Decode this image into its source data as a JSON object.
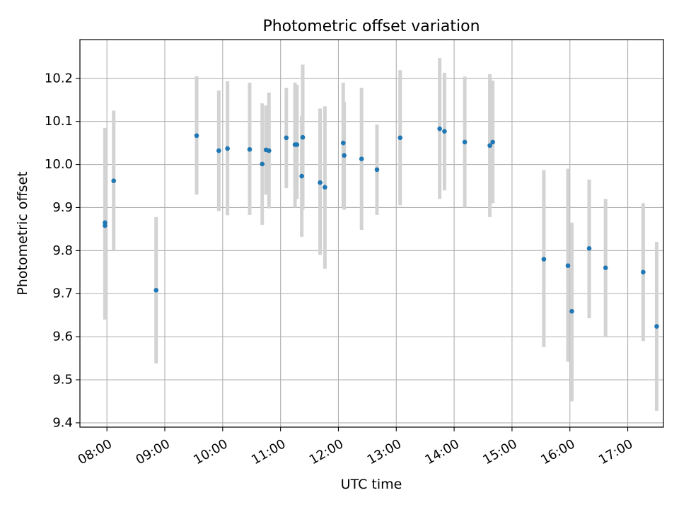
{
  "chart_data": {
    "type": "scatter",
    "title": "Photometric offset variation",
    "xlabel": "UTC time",
    "ylabel": "Photometric offset",
    "xlim": [
      "07:32",
      "17:37"
    ],
    "ylim": [
      9.39,
      10.29
    ],
    "x_ticks": [
      "08:00",
      "09:00",
      "10:00",
      "11:00",
      "12:00",
      "13:00",
      "14:00",
      "15:00",
      "16:00",
      "17:00"
    ],
    "y_ticks": [
      9.4,
      9.5,
      9.6,
      9.7,
      9.8,
      9.9,
      10.0,
      10.1,
      10.2
    ],
    "grid": true,
    "marker_color": "#1f77b4",
    "errorbar_color": "#d3d3d3",
    "points": [
      {
        "x": "07:58",
        "y": 9.865,
        "yerr_low": 9.64,
        "yerr_high": 10.085
      },
      {
        "x": "07:58",
        "y": 9.858,
        "yerr_low": 9.64,
        "yerr_high": 10.085
      },
      {
        "x": "08:07",
        "y": 9.962,
        "yerr_low": 9.8,
        "yerr_high": 10.125
      },
      {
        "x": "08:51",
        "y": 9.708,
        "yerr_low": 9.538,
        "yerr_high": 9.878
      },
      {
        "x": "09:33",
        "y": 10.067,
        "yerr_low": 9.93,
        "yerr_high": 10.205
      },
      {
        "x": "09:56",
        "y": 10.032,
        "yerr_low": 9.892,
        "yerr_high": 10.172
      },
      {
        "x": "10:05",
        "y": 10.037,
        "yerr_low": 9.882,
        "yerr_high": 10.193
      },
      {
        "x": "10:28",
        "y": 10.035,
        "yerr_low": 9.883,
        "yerr_high": 10.19
      },
      {
        "x": "10:41",
        "y": 10.001,
        "yerr_low": 9.86,
        "yerr_high": 10.142
      },
      {
        "x": "10:45",
        "y": 10.034,
        "yerr_low": 9.93,
        "yerr_high": 10.137
      },
      {
        "x": "10:48",
        "y": 10.032,
        "yerr_low": 9.898,
        "yerr_high": 10.167
      },
      {
        "x": "11:06",
        "y": 10.062,
        "yerr_low": 9.945,
        "yerr_high": 10.178
      },
      {
        "x": "11:15",
        "y": 10.046,
        "yerr_low": 9.9,
        "yerr_high": 10.19
      },
      {
        "x": "11:17",
        "y": 10.046,
        "yerr_low": 9.92,
        "yerr_high": 10.185
      },
      {
        "x": "11:22",
        "y": 9.973,
        "yerr_low": 9.832,
        "yerr_high": 10.113
      },
      {
        "x": "11:23",
        "y": 10.063,
        "yerr_low": 9.895,
        "yerr_high": 10.232
      },
      {
        "x": "11:41",
        "y": 9.958,
        "yerr_low": 9.79,
        "yerr_high": 10.13
      },
      {
        "x": "11:46",
        "y": 9.947,
        "yerr_low": 9.758,
        "yerr_high": 10.135
      },
      {
        "x": "12:05",
        "y": 10.05,
        "yerr_low": 9.9,
        "yerr_high": 10.19
      },
      {
        "x": "12:06",
        "y": 10.021,
        "yerr_low": 9.895,
        "yerr_high": 10.145
      },
      {
        "x": "12:24",
        "y": 10.013,
        "yerr_low": 9.848,
        "yerr_high": 10.178
      },
      {
        "x": "12:40",
        "y": 9.988,
        "yerr_low": 9.883,
        "yerr_high": 10.093
      },
      {
        "x": "13:04",
        "y": 10.062,
        "yerr_low": 9.905,
        "yerr_high": 10.219
      },
      {
        "x": "13:45",
        "y": 10.083,
        "yerr_low": 9.92,
        "yerr_high": 10.247
      },
      {
        "x": "13:50",
        "y": 10.077,
        "yerr_low": 9.94,
        "yerr_high": 10.213
      },
      {
        "x": "14:11",
        "y": 10.052,
        "yerr_low": 9.9,
        "yerr_high": 10.204
      },
      {
        "x": "14:37",
        "y": 10.044,
        "yerr_low": 9.878,
        "yerr_high": 10.21
      },
      {
        "x": "14:40",
        "y": 10.052,
        "yerr_low": 9.91,
        "yerr_high": 10.195
      },
      {
        "x": "15:33",
        "y": 9.78,
        "yerr_low": 9.576,
        "yerr_high": 9.987
      },
      {
        "x": "15:58",
        "y": 9.765,
        "yerr_low": 9.542,
        "yerr_high": 9.99
      },
      {
        "x": "16:02",
        "y": 9.659,
        "yerr_low": 9.45,
        "yerr_high": 9.865
      },
      {
        "x": "16:20",
        "y": 9.805,
        "yerr_low": 9.643,
        "yerr_high": 9.965
      },
      {
        "x": "16:37",
        "y": 9.76,
        "yerr_low": 9.6,
        "yerr_high": 9.92
      },
      {
        "x": "17:16",
        "y": 9.75,
        "yerr_low": 9.59,
        "yerr_high": 9.91
      },
      {
        "x": "17:30",
        "y": 9.624,
        "yerr_low": 9.428,
        "yerr_high": 9.82
      }
    ]
  }
}
